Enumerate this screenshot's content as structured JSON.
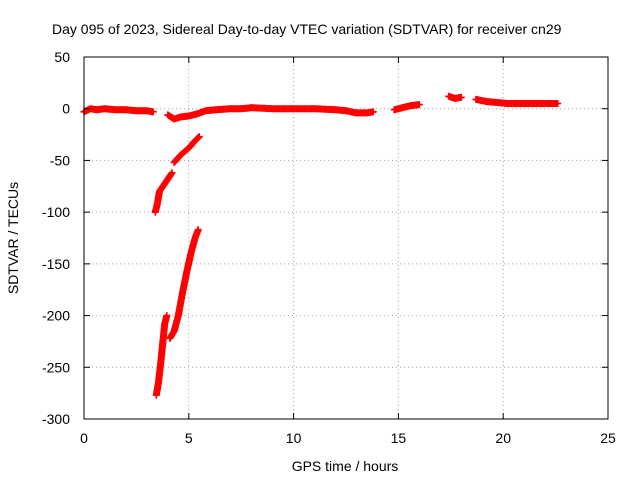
{
  "chart_data": {
    "type": "scatter",
    "title": "Day 095 of 2023, Sidereal Day-to-day VTEC variation (SDTVAR) for receiver cn29",
    "xlabel": "GPS time / hours",
    "ylabel": "SDTVAR / TECUs",
    "xlim": [
      0,
      25
    ],
    "ylim": [
      -300,
      50
    ],
    "xticks": [
      0,
      5,
      10,
      15,
      20,
      25
    ],
    "yticks": [
      -300,
      -250,
      -200,
      -150,
      -100,
      -50,
      0,
      50
    ],
    "grid": true,
    "marker": "+",
    "marker_color": "#ff0000",
    "segments": [
      {
        "points": [
          [
            0.0,
            -3
          ],
          [
            0.3,
            0
          ],
          [
            0.6,
            -1
          ],
          [
            1.0,
            0
          ],
          [
            1.5,
            -1
          ],
          [
            2.0,
            -1
          ],
          [
            2.5,
            -2
          ],
          [
            3.0,
            -2
          ],
          [
            3.3,
            -3
          ]
        ]
      },
      {
        "points": [
          [
            4.0,
            -6
          ],
          [
            4.3,
            -10
          ],
          [
            4.6,
            -8
          ],
          [
            5.0,
            -7
          ],
          [
            5.4,
            -5
          ],
          [
            5.8,
            -2
          ],
          [
            6.3,
            -1
          ],
          [
            7.0,
            0
          ],
          [
            7.5,
            0
          ],
          [
            8.0,
            1
          ],
          [
            9.0,
            0
          ],
          [
            10.0,
            0
          ],
          [
            11.0,
            0
          ],
          [
            12.0,
            -1
          ],
          [
            12.5,
            -2
          ],
          [
            13.0,
            -4
          ],
          [
            13.5,
            -4
          ],
          [
            13.8,
            -3
          ]
        ]
      },
      {
        "points": [
          [
            14.8,
            -1
          ],
          [
            15.2,
            1
          ],
          [
            15.6,
            3
          ],
          [
            16.0,
            4
          ]
        ]
      },
      {
        "points": [
          [
            17.4,
            12
          ],
          [
            17.7,
            10
          ],
          [
            18.0,
            11
          ]
        ]
      },
      {
        "points": [
          [
            18.7,
            9
          ],
          [
            19.2,
            7
          ],
          [
            19.7,
            6
          ],
          [
            20.2,
            5
          ],
          [
            20.8,
            5
          ],
          [
            21.5,
            5
          ],
          [
            22.0,
            5
          ],
          [
            22.6,
            5
          ]
        ]
      },
      {
        "points": [
          [
            4.3,
            -52
          ],
          [
            4.6,
            -45
          ],
          [
            5.0,
            -38
          ],
          [
            5.3,
            -31
          ],
          [
            5.5,
            -27
          ]
        ]
      },
      {
        "points": [
          [
            3.4,
            -100
          ],
          [
            3.5,
            -92
          ],
          [
            3.6,
            -80
          ],
          [
            3.8,
            -74
          ],
          [
            4.0,
            -68
          ],
          [
            4.2,
            -62
          ]
        ]
      },
      {
        "points": [
          [
            3.45,
            -277
          ],
          [
            3.55,
            -265
          ],
          [
            3.65,
            -248
          ],
          [
            3.75,
            -228
          ],
          [
            3.85,
            -208
          ],
          [
            3.95,
            -200
          ]
        ]
      },
      {
        "points": [
          [
            4.1,
            -222
          ],
          [
            4.3,
            -215
          ],
          [
            4.5,
            -200
          ],
          [
            4.7,
            -178
          ],
          [
            4.9,
            -158
          ],
          [
            5.1,
            -140
          ],
          [
            5.3,
            -125
          ],
          [
            5.45,
            -117
          ]
        ]
      }
    ]
  }
}
